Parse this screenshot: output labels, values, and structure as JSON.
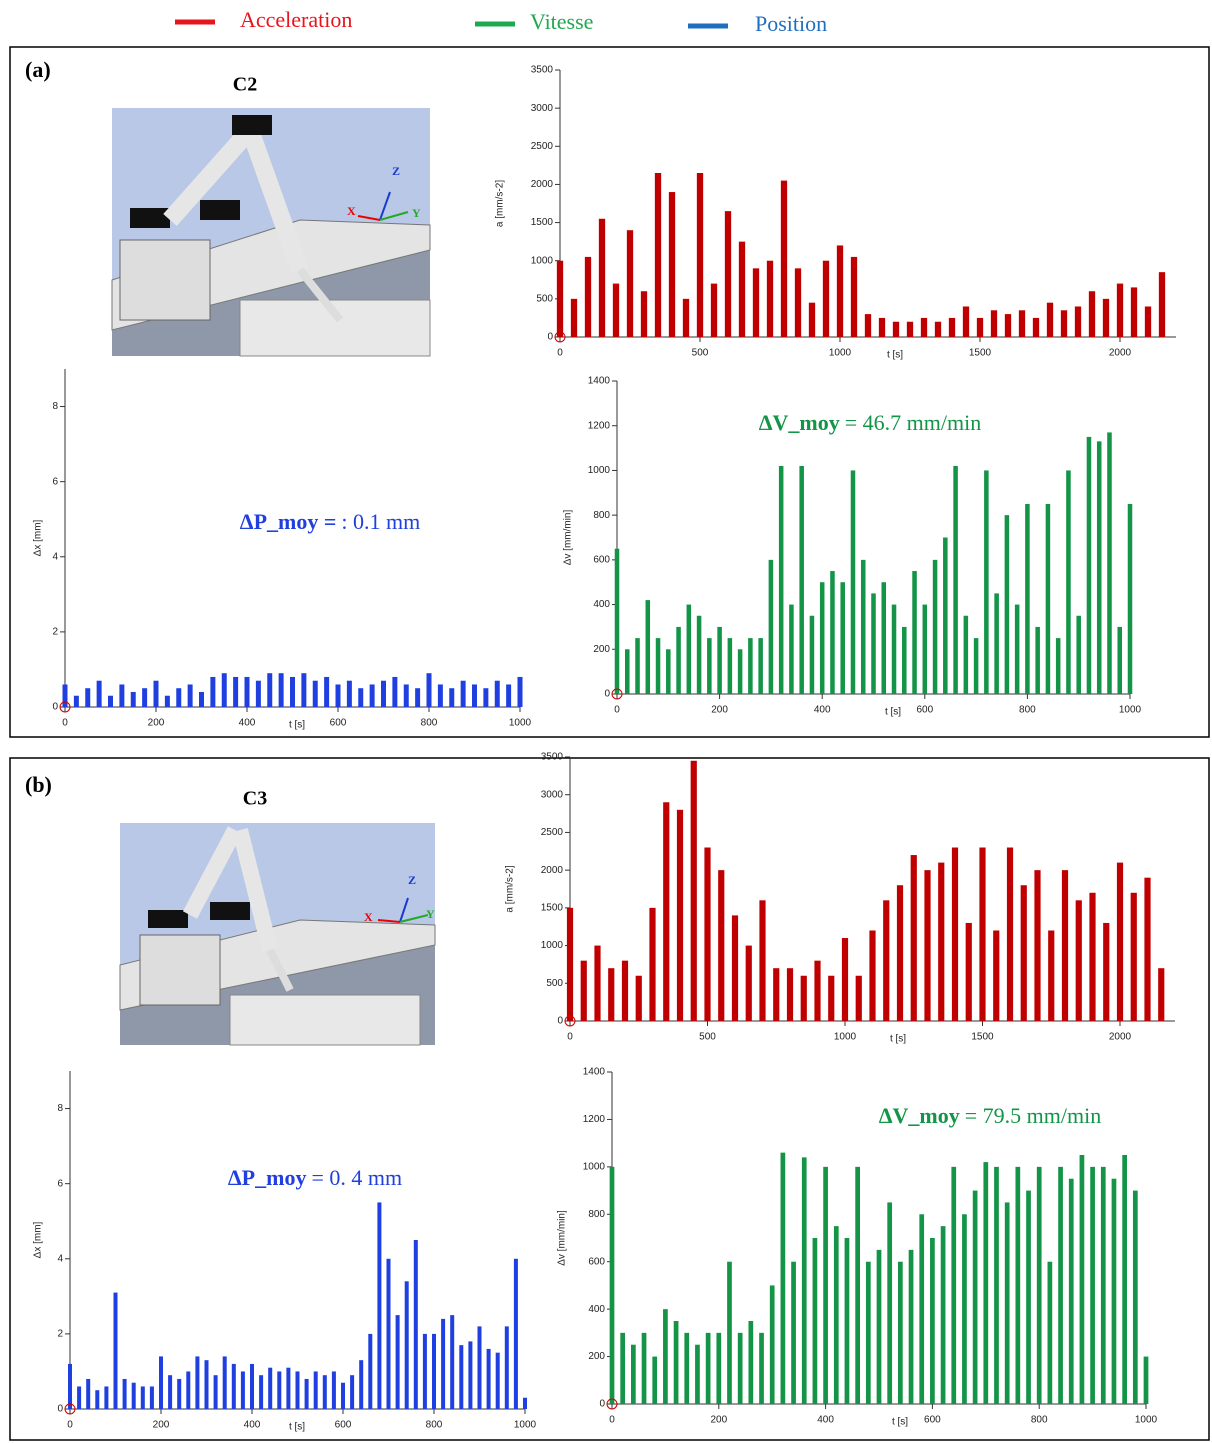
{
  "legend": [
    {
      "name": "Acceleration",
      "color": "#e8141c"
    },
    {
      "name": "Vitesse",
      "color": "#1fa84f"
    },
    {
      "name": "Position",
      "color": "#1f6fc0"
    }
  ],
  "panels": [
    {
      "label": "(a)",
      "config": "C2",
      "chart_data": [
        {
          "type": "bar",
          "ylabel": "a [mm/s-2]",
          "xlabel": "t [s]",
          "color": "#c00000",
          "xlim": [
            0,
            2200
          ],
          "xticks": [
            0,
            500,
            1000,
            1500,
            2000
          ],
          "ylim": [
            0,
            3500
          ],
          "yticks": [
            0,
            500,
            1000,
            1500,
            2000,
            2500,
            3000,
            3500
          ],
          "x": [
            0,
            50,
            100,
            150,
            200,
            250,
            300,
            350,
            400,
            450,
            500,
            550,
            600,
            650,
            700,
            750,
            800,
            850,
            900,
            950,
            1000,
            1050,
            1100,
            1150,
            1200,
            1250,
            1300,
            1350,
            1400,
            1450,
            1500,
            1550,
            1600,
            1650,
            1700,
            1750,
            1800,
            1850,
            1900,
            1950,
            2000,
            2050,
            2100,
            2150
          ],
          "values": [
            1000,
            500,
            1050,
            1550,
            700,
            1400,
            600,
            2150,
            1900,
            500,
            2150,
            700,
            1650,
            1250,
            900,
            1000,
            2050,
            900,
            450,
            1000,
            1200,
            1050,
            300,
            250,
            200,
            200,
            250,
            200,
            250,
            400,
            250,
            350,
            300,
            350,
            250,
            450,
            350,
            400,
            600,
            500,
            700,
            650,
            400,
            850
          ]
        },
        {
          "type": "bar",
          "ylabel": "Δx [mm]",
          "xlabel": "t [s]",
          "color": "#1f3fe0",
          "annotation_bold": "ΔP_moy =",
          "annotation": ": 0.1 mm",
          "xlim": [
            0,
            1000
          ],
          "xticks": [
            0,
            200,
            400,
            600,
            800,
            1000
          ],
          "ylim": [
            0,
            9
          ],
          "yticks": [
            0,
            2,
            4,
            6,
            8
          ],
          "x": [
            0,
            25,
            50,
            75,
            100,
            125,
            150,
            175,
            200,
            225,
            250,
            275,
            300,
            325,
            350,
            375,
            400,
            425,
            450,
            475,
            500,
            525,
            550,
            575,
            600,
            625,
            650,
            675,
            700,
            725,
            750,
            775,
            800,
            825,
            850,
            875,
            900,
            925,
            950,
            975,
            1000
          ],
          "values": [
            0.6,
            0.3,
            0.5,
            0.7,
            0.3,
            0.6,
            0.4,
            0.5,
            0.7,
            0.3,
            0.5,
            0.6,
            0.4,
            0.8,
            0.9,
            0.8,
            0.8,
            0.7,
            0.9,
            0.9,
            0.8,
            0.9,
            0.7,
            0.8,
            0.6,
            0.7,
            0.5,
            0.6,
            0.7,
            0.8,
            0.6,
            0.5,
            0.9,
            0.6,
            0.5,
            0.7,
            0.6,
            0.5,
            0.7,
            0.6,
            0.8
          ]
        },
        {
          "type": "bar",
          "ylabel": "Δv [mm/min]",
          "xlabel": "t [s]",
          "color": "#139447",
          "annotation_bold": "ΔV_moy",
          "annotation": "= 46.7 mm/min",
          "xlim": [
            0,
            1000
          ],
          "xticks": [
            0,
            200,
            400,
            600,
            800,
            1000
          ],
          "ylim": [
            0,
            1400
          ],
          "yticks": [
            0,
            200,
            400,
            600,
            800,
            1000,
            1200,
            1400
          ],
          "x": [
            0,
            20,
            40,
            60,
            80,
            100,
            120,
            140,
            160,
            180,
            200,
            220,
            240,
            260,
            280,
            300,
            320,
            340,
            360,
            380,
            400,
            420,
            440,
            460,
            480,
            500,
            520,
            540,
            560,
            580,
            600,
            620,
            640,
            660,
            680,
            700,
            720,
            740,
            760,
            780,
            800,
            820,
            840,
            860,
            880,
            900,
            920,
            940,
            960,
            980,
            1000
          ],
          "values": [
            650,
            200,
            250,
            420,
            250,
            200,
            300,
            400,
            350,
            250,
            300,
            250,
            200,
            250,
            250,
            600,
            1020,
            400,
            1020,
            350,
            500,
            550,
            500,
            1000,
            600,
            450,
            500,
            400,
            300,
            550,
            400,
            600,
            700,
            1020,
            350,
            250,
            1000,
            450,
            800,
            400,
            850,
            300,
            850,
            250,
            1000,
            350,
            1150,
            1130,
            1170,
            300,
            850
          ]
        }
      ]
    },
    {
      "label": "(b)",
      "config": "C3",
      "chart_data": [
        {
          "type": "bar",
          "ylabel": "a [mm/s-2]",
          "xlabel": "t [s]",
          "color": "#c00000",
          "xlim": [
            0,
            2200
          ],
          "xticks": [
            0,
            500,
            1000,
            1500,
            2000
          ],
          "ylim": [
            0,
            3500
          ],
          "yticks": [
            0,
            500,
            1000,
            1500,
            2000,
            2500,
            3000,
            3500
          ],
          "x": [
            0,
            50,
            100,
            150,
            200,
            250,
            300,
            350,
            400,
            450,
            500,
            550,
            600,
            650,
            700,
            750,
            800,
            850,
            900,
            950,
            1000,
            1050,
            1100,
            1150,
            1200,
            1250,
            1300,
            1350,
            1400,
            1450,
            1500,
            1550,
            1600,
            1650,
            1700,
            1750,
            1800,
            1850,
            1900,
            1950,
            2000,
            2050,
            2100,
            2150
          ],
          "values": [
            1500,
            800,
            1000,
            700,
            800,
            600,
            1500,
            2900,
            2800,
            3450,
            2300,
            2000,
            1400,
            1000,
            1600,
            700,
            700,
            600,
            800,
            600,
            1100,
            600,
            1200,
            1600,
            1800,
            2200,
            2000,
            2100,
            2300,
            1300,
            2300,
            1200,
            2300,
            1800,
            2000,
            1200,
            2000,
            1600,
            1700,
            1300,
            2100,
            1700,
            1900,
            700
          ]
        },
        {
          "type": "bar",
          "ylabel": "Δx [mm]",
          "xlabel": "t [s]",
          "color": "#1f3fe0",
          "annotation_bold": "ΔP_moy",
          "annotation": "= 0. 4 mm",
          "xlim": [
            0,
            1000
          ],
          "xticks": [
            0,
            200,
            400,
            600,
            800,
            1000
          ],
          "ylim": [
            0,
            9
          ],
          "yticks": [
            0,
            2,
            4,
            6,
            8
          ],
          "x": [
            0,
            20,
            40,
            60,
            80,
            100,
            120,
            140,
            160,
            180,
            200,
            220,
            240,
            260,
            280,
            300,
            320,
            340,
            360,
            380,
            400,
            420,
            440,
            460,
            480,
            500,
            520,
            540,
            560,
            580,
            600,
            620,
            640,
            660,
            680,
            700,
            720,
            740,
            760,
            780,
            800,
            820,
            840,
            860,
            880,
            900,
            920,
            940,
            960,
            980,
            1000
          ],
          "values": [
            1.2,
            0.6,
            0.8,
            0.5,
            0.6,
            3.1,
            0.8,
            0.7,
            0.6,
            0.6,
            1.4,
            0.9,
            0.8,
            1.0,
            1.4,
            1.3,
            0.9,
            1.4,
            1.2,
            1.0,
            1.2,
            0.9,
            1.1,
            1.0,
            1.1,
            1.0,
            0.8,
            1.0,
            0.9,
            1.0,
            0.7,
            0.9,
            1.3,
            2.0,
            5.5,
            4.0,
            2.5,
            3.4,
            4.5,
            2.0,
            2.0,
            2.4,
            2.5,
            1.7,
            1.8,
            2.2,
            1.6,
            1.5,
            2.2,
            4.0,
            0.3
          ]
        },
        {
          "type": "bar",
          "ylabel": "Δv [mm/min]",
          "xlabel": "t [s]",
          "color": "#139447",
          "annotation_bold": "ΔV_moy",
          "annotation": "= 79.5 mm/min",
          "xlim": [
            0,
            1000
          ],
          "xticks": [
            0,
            200,
            400,
            600,
            800,
            1000
          ],
          "ylim": [
            0,
            1400
          ],
          "yticks": [
            0,
            200,
            400,
            600,
            800,
            1000,
            1200,
            1400
          ],
          "x": [
            0,
            20,
            40,
            60,
            80,
            100,
            120,
            140,
            160,
            180,
            200,
            220,
            240,
            260,
            280,
            300,
            320,
            340,
            360,
            380,
            400,
            420,
            440,
            460,
            480,
            500,
            520,
            540,
            560,
            580,
            600,
            620,
            640,
            660,
            680,
            700,
            720,
            740,
            760,
            780,
            800,
            820,
            840,
            860,
            880,
            900,
            920,
            940,
            960,
            980,
            1000
          ],
          "values": [
            1000,
            300,
            250,
            300,
            200,
            400,
            350,
            300,
            250,
            300,
            300,
            600,
            300,
            350,
            300,
            500,
            1060,
            600,
            1040,
            700,
            1000,
            750,
            700,
            1000,
            600,
            650,
            850,
            600,
            650,
            800,
            700,
            750,
            1000,
            800,
            900,
            1020,
            1000,
            850,
            1000,
            900,
            1000,
            600,
            1000,
            950,
            1050,
            1000,
            1000,
            950,
            1050,
            900,
            200
          ]
        }
      ]
    }
  ]
}
